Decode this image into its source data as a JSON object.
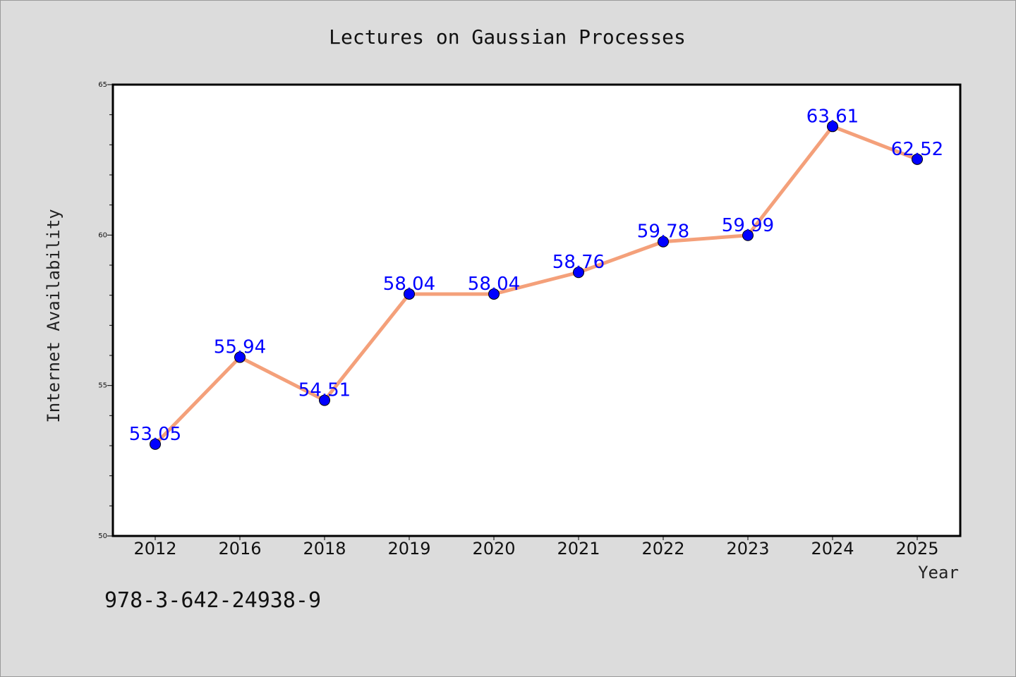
{
  "chart_data": {
    "type": "line",
    "title": "Lectures on Gaussian Processes",
    "xlabel": "Year",
    "ylabel": "Internet Availability",
    "categories": [
      "2012",
      "2016",
      "2018",
      "2019",
      "2020",
      "2021",
      "2022",
      "2023",
      "2024",
      "2025"
    ],
    "series": [
      {
        "values": [
          53.05,
          55.94,
          54.51,
          58.04,
          58.04,
          58.76,
          59.78,
          59.99,
          63.61,
          62.52
        ]
      }
    ],
    "data_labels": [
      "53.05",
      "55.94",
      "54.51",
      "58.04",
      "58.04",
      "58.76",
      "59.78",
      "59.99",
      "63.61",
      "62.52"
    ],
    "ylim": [
      50,
      65
    ],
    "yticks": [
      50,
      55,
      60,
      65
    ],
    "grid": false,
    "line_color": "#f4a07a",
    "marker_color": "#0000ff",
    "label_color": "#0000ff",
    "background_color": "#dcdcdc",
    "plot_background": "#ffffff"
  },
  "footer": {
    "isbn": "978-3-642-24938-9"
  }
}
